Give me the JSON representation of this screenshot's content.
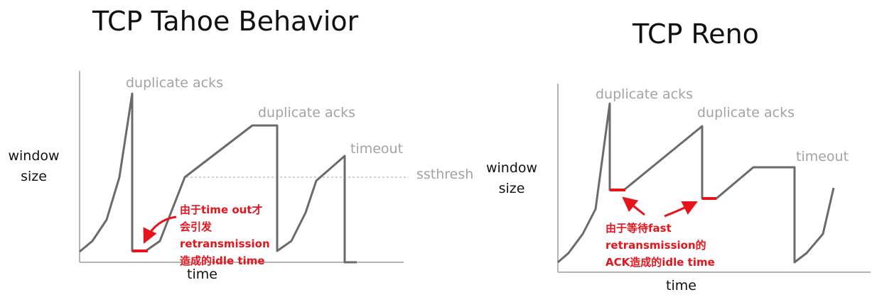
{
  "colors": {
    "line": "#6b6b6b",
    "axis": "#b4b4b4",
    "label": "#a3a3a3",
    "highlight": "#e8141c"
  },
  "left": {
    "title": "TCP Tahoe Behavior",
    "ylabel_1": "window",
    "ylabel_2": "size",
    "xlabel": "time",
    "labels": {
      "dup1": "duplicate acks",
      "dup2": "duplicate acks",
      "timeout": "timeout",
      "ssthresh": "ssthresh"
    },
    "annotation": [
      "由于time out才",
      "会引发",
      "retransmission",
      "造成的idle time"
    ]
  },
  "right": {
    "title": "TCP Reno",
    "ylabel_1": "window",
    "ylabel_2": "size",
    "xlabel": "time",
    "labels": {
      "dup1": "duplicate acks",
      "dup2": "duplicate acks",
      "timeout": "timeout"
    },
    "annotation": [
      "由于等待fast",
      "retransmission的",
      "ACK造成的idle time"
    ]
  }
}
